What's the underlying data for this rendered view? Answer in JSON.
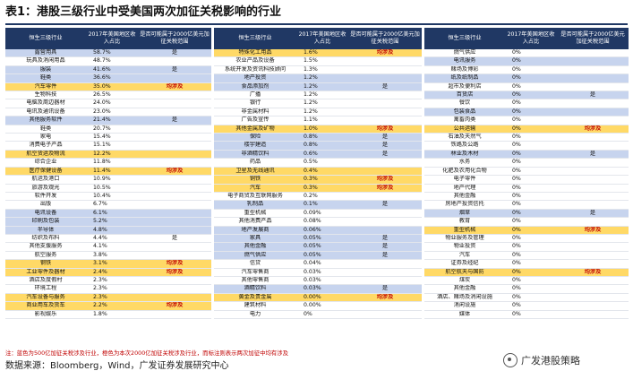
{
  "title": "表1：港股三级行业中受美国两次加征关税影响的行业",
  "headers": {
    "name": "恒生三级行业",
    "share": "2017年美国地区收入占比",
    "flag": "是否可能属于2000亿美元加征关税范围"
  },
  "blocks": [
    [
      {
        "name": "露营用具",
        "share": "58.7%",
        "flag": "是",
        "hl": "blue"
      },
      {
        "name": "玩具及消闲用品",
        "share": "48.7%",
        "flag": "",
        "hl": ""
      },
      {
        "name": "服装",
        "share": "41.6%",
        "flag": "是",
        "hl": "blue"
      },
      {
        "name": "鞋类",
        "share": "36.6%",
        "flag": "",
        "hl": "blue"
      },
      {
        "name": "汽车零件",
        "share": "35.0%",
        "flag": "均涉及",
        "hl": "orange"
      },
      {
        "name": "生物科技",
        "share": "26.5%",
        "flag": "",
        "hl": ""
      },
      {
        "name": "电脑及周边器材",
        "share": "24.0%",
        "flag": "",
        "hl": ""
      },
      {
        "name": "电讯及通讯设备",
        "share": "23.0%",
        "flag": "",
        "hl": ""
      },
      {
        "name": "其他服务软件",
        "share": "21.4%",
        "flag": "是",
        "hl": "blue"
      },
      {
        "name": "鞋类",
        "share": "20.7%",
        "flag": "",
        "hl": ""
      },
      {
        "name": "家电",
        "share": "15.4%",
        "flag": "",
        "hl": ""
      },
      {
        "name": "消费电子产品",
        "share": "15.1%",
        "flag": "",
        "hl": ""
      },
      {
        "name": "航空货运及物流",
        "share": "12.2%",
        "flag": "",
        "hl": "orange"
      },
      {
        "name": "综合企业",
        "share": "11.8%",
        "flag": "",
        "hl": ""
      },
      {
        "name": "医疗保健设备",
        "share": "11.4%",
        "flag": "均涉及",
        "hl": "orange"
      },
      {
        "name": "航运及港口",
        "share": "10.9%",
        "flag": "",
        "hl": ""
      },
      {
        "name": "旅游及观光",
        "share": "10.5%",
        "flag": "",
        "hl": ""
      },
      {
        "name": "软件开发",
        "share": "10.4%",
        "flag": "",
        "hl": ""
      },
      {
        "name": "出版",
        "share": "6.7%",
        "flag": "",
        "hl": ""
      },
      {
        "name": "电讯设备",
        "share": "6.1%",
        "flag": "",
        "hl": "blue"
      },
      {
        "name": "印刷及包装",
        "share": "5.2%",
        "flag": "",
        "hl": "blue"
      },
      {
        "name": "半导体",
        "share": "4.8%",
        "flag": "",
        "hl": "blue"
      },
      {
        "name": "纺织及布料",
        "share": "4.4%",
        "flag": "是",
        "hl": ""
      },
      {
        "name": "其他支援服务",
        "share": "4.1%",
        "flag": "",
        "hl": ""
      },
      {
        "name": "航空服务",
        "share": "3.8%",
        "flag": "",
        "hl": ""
      },
      {
        "name": "钢铁",
        "share": "3.1%",
        "flag": "均涉及",
        "hl": "orange"
      },
      {
        "name": "工业零件及器材",
        "share": "2.4%",
        "flag": "均涉及",
        "hl": "orange"
      },
      {
        "name": "酒店及度假村",
        "share": "2.3%",
        "flag": "",
        "hl": ""
      },
      {
        "name": "环境工程",
        "share": "2.3%",
        "flag": "",
        "hl": ""
      },
      {
        "name": "汽车设备与服务",
        "share": "2.3%",
        "flag": "",
        "hl": "orange"
      },
      {
        "name": "商业用车及货车",
        "share": "2.2%",
        "flag": "均涉及",
        "hl": "orange"
      },
      {
        "name": "影视娱乐",
        "share": "1.8%",
        "flag": "",
        "hl": ""
      }
    ],
    [
      {
        "name": "特殊化工用品",
        "share": "1.6%",
        "flag": "均涉及",
        "hl": "orange"
      },
      {
        "name": "农业产品及设备",
        "share": "1.5%",
        "flag": "",
        "hl": ""
      },
      {
        "name": "系统开发及资讯科技顾问",
        "share": "1.3%",
        "flag": "",
        "hl": ""
      },
      {
        "name": "地产投资",
        "share": "1.2%",
        "flag": "",
        "hl": "blue"
      },
      {
        "name": "食品添加剂",
        "share": "1.2%",
        "flag": "是",
        "hl": "blue"
      },
      {
        "name": "广播",
        "share": "1.2%",
        "flag": "",
        "hl": ""
      },
      {
        "name": "银行",
        "share": "1.2%",
        "flag": "",
        "hl": ""
      },
      {
        "name": "非金属材料",
        "share": "1.2%",
        "flag": "",
        "hl": ""
      },
      {
        "name": "广告及宣传",
        "share": "1.1%",
        "flag": "",
        "hl": ""
      },
      {
        "name": "其他金属及矿物",
        "share": "1.0%",
        "flag": "均涉及",
        "hl": "orange"
      },
      {
        "name": "保险",
        "share": "0.8%",
        "flag": "是",
        "hl": "blue"
      },
      {
        "name": "楼宇建造",
        "share": "0.8%",
        "flag": "是",
        "hl": "blue"
      },
      {
        "name": "非酒精饮料",
        "share": "0.6%",
        "flag": "是",
        "hl": "blue"
      },
      {
        "name": "药品",
        "share": "0.5%",
        "flag": "",
        "hl": ""
      },
      {
        "name": "卫星及无线通讯",
        "share": "0.4%",
        "flag": "",
        "hl": "orange"
      },
      {
        "name": "铜铁",
        "share": "0.3%",
        "flag": "均涉及",
        "hl": "orange"
      },
      {
        "name": "汽车",
        "share": "0.3%",
        "flag": "均涉及",
        "hl": "orange"
      },
      {
        "name": "电子商贸及互联网服务",
        "share": "0.2%",
        "flag": "",
        "hl": ""
      },
      {
        "name": "乳制品",
        "share": "0.1%",
        "flag": "是",
        "hl": "blue"
      },
      {
        "name": "重型机械",
        "share": "0.09%",
        "flag": "",
        "hl": ""
      },
      {
        "name": "其他消费产品",
        "share": "0.08%",
        "flag": "",
        "hl": ""
      },
      {
        "name": "地产发展商",
        "share": "0.06%",
        "flag": "",
        "hl": "blue"
      },
      {
        "name": "家具",
        "share": "0.05%",
        "flag": "是",
        "hl": "blue"
      },
      {
        "name": "其他金融",
        "share": "0.05%",
        "flag": "是",
        "hl": "blue"
      },
      {
        "name": "燃气供应",
        "share": "0.05%",
        "flag": "是",
        "hl": "blue"
      },
      {
        "name": "信贷",
        "share": "0.04%",
        "flag": "",
        "hl": ""
      },
      {
        "name": "汽车零售商",
        "share": "0.03%",
        "flag": "",
        "hl": ""
      },
      {
        "name": "其他零售商",
        "share": "0.03%",
        "flag": "",
        "hl": ""
      },
      {
        "name": "酒精饮料",
        "share": "0.03%",
        "flag": "是",
        "hl": "blue"
      },
      {
        "name": "黄金及贵金属",
        "share": "0.00%",
        "flag": "均涉及",
        "hl": "orange"
      },
      {
        "name": "建筑材料",
        "share": "0.00%",
        "flag": "",
        "hl": ""
      },
      {
        "name": "电力",
        "share": "0%",
        "flag": "",
        "hl": ""
      }
    ],
    [
      {
        "name": "燃气供应",
        "share": "0%",
        "flag": "",
        "hl": ""
      },
      {
        "name": "电讯服务",
        "share": "0%",
        "flag": "",
        "hl": "blue"
      },
      {
        "name": "赌场及博彩",
        "share": "0%",
        "flag": "",
        "hl": ""
      },
      {
        "name": "纸及纸制品",
        "share": "0%",
        "flag": "",
        "hl": "blue"
      },
      {
        "name": "超市及便利店",
        "share": "0%",
        "flag": "",
        "hl": ""
      },
      {
        "name": "百货店",
        "share": "0%",
        "flag": "是",
        "hl": "blue"
      },
      {
        "name": "餐饮",
        "share": "0%",
        "flag": "",
        "hl": ""
      },
      {
        "name": "包装食品",
        "share": "0%",
        "flag": "",
        "hl": "blue"
      },
      {
        "name": "禽畜肉类",
        "share": "0%",
        "flag": "",
        "hl": ""
      },
      {
        "name": "公共运输",
        "share": "0%",
        "flag": "均涉及",
        "hl": "orange"
      },
      {
        "name": "石油及天然气",
        "share": "0%",
        "flag": "",
        "hl": ""
      },
      {
        "name": "铁路及公路",
        "share": "0%",
        "flag": "",
        "hl": ""
      },
      {
        "name": "林业及木材",
        "share": "0%",
        "flag": "是",
        "hl": "blue"
      },
      {
        "name": "水务",
        "share": "0%",
        "flag": "",
        "hl": ""
      },
      {
        "name": "化肥及农用化合物",
        "share": "0%",
        "flag": "",
        "hl": ""
      },
      {
        "name": "电子零件",
        "share": "0%",
        "flag": "",
        "hl": ""
      },
      {
        "name": "地产代理",
        "share": "0%",
        "flag": "",
        "hl": ""
      },
      {
        "name": "其他金融",
        "share": "0%",
        "flag": "",
        "hl": ""
      },
      {
        "name": "房地产投资信托",
        "share": "0%",
        "flag": "",
        "hl": ""
      },
      {
        "name": "烟草",
        "share": "0%",
        "flag": "是",
        "hl": "blue"
      },
      {
        "name": "教育",
        "share": "0%",
        "flag": "",
        "hl": ""
      },
      {
        "name": "重型机械",
        "share": "0%",
        "flag": "均涉及",
        "hl": "orange"
      },
      {
        "name": "物业服务及管理",
        "share": "0%",
        "flag": "",
        "hl": ""
      },
      {
        "name": "物业投资",
        "share": "0%",
        "flag": "",
        "hl": ""
      },
      {
        "name": "汽车",
        "share": "0%",
        "flag": "",
        "hl": ""
      },
      {
        "name": "证券及经纪",
        "share": "0%",
        "flag": "",
        "hl": ""
      },
      {
        "name": "航空航天与国防",
        "share": "0%",
        "flag": "均涉及",
        "hl": "orange"
      },
      {
        "name": "煤炭",
        "share": "0%",
        "flag": "",
        "hl": ""
      },
      {
        "name": "其他金融",
        "share": "0%",
        "flag": "",
        "hl": ""
      },
      {
        "name": "酒店、赌场及消闲设施",
        "share": "0%",
        "flag": "",
        "hl": ""
      },
      {
        "name": "消闲设施",
        "share": "0%",
        "flag": "",
        "hl": ""
      },
      {
        "name": "媒体",
        "share": "0%",
        "flag": "",
        "hl": ""
      }
    ]
  ],
  "note": "注：蓝色为500亿加征关税涉及行业，橙色为本次2000亿加征关税涉及行业，而标注则表示两次加征中均有涉及",
  "source": "数据来源：Bloomberg，Wind，广发证券发展研究中心",
  "watermark": "广发港股策略",
  "colors": {
    "header": "#203864",
    "blue": "#c7d4ee",
    "orange": "#ffd966",
    "alert": "#c00000"
  }
}
